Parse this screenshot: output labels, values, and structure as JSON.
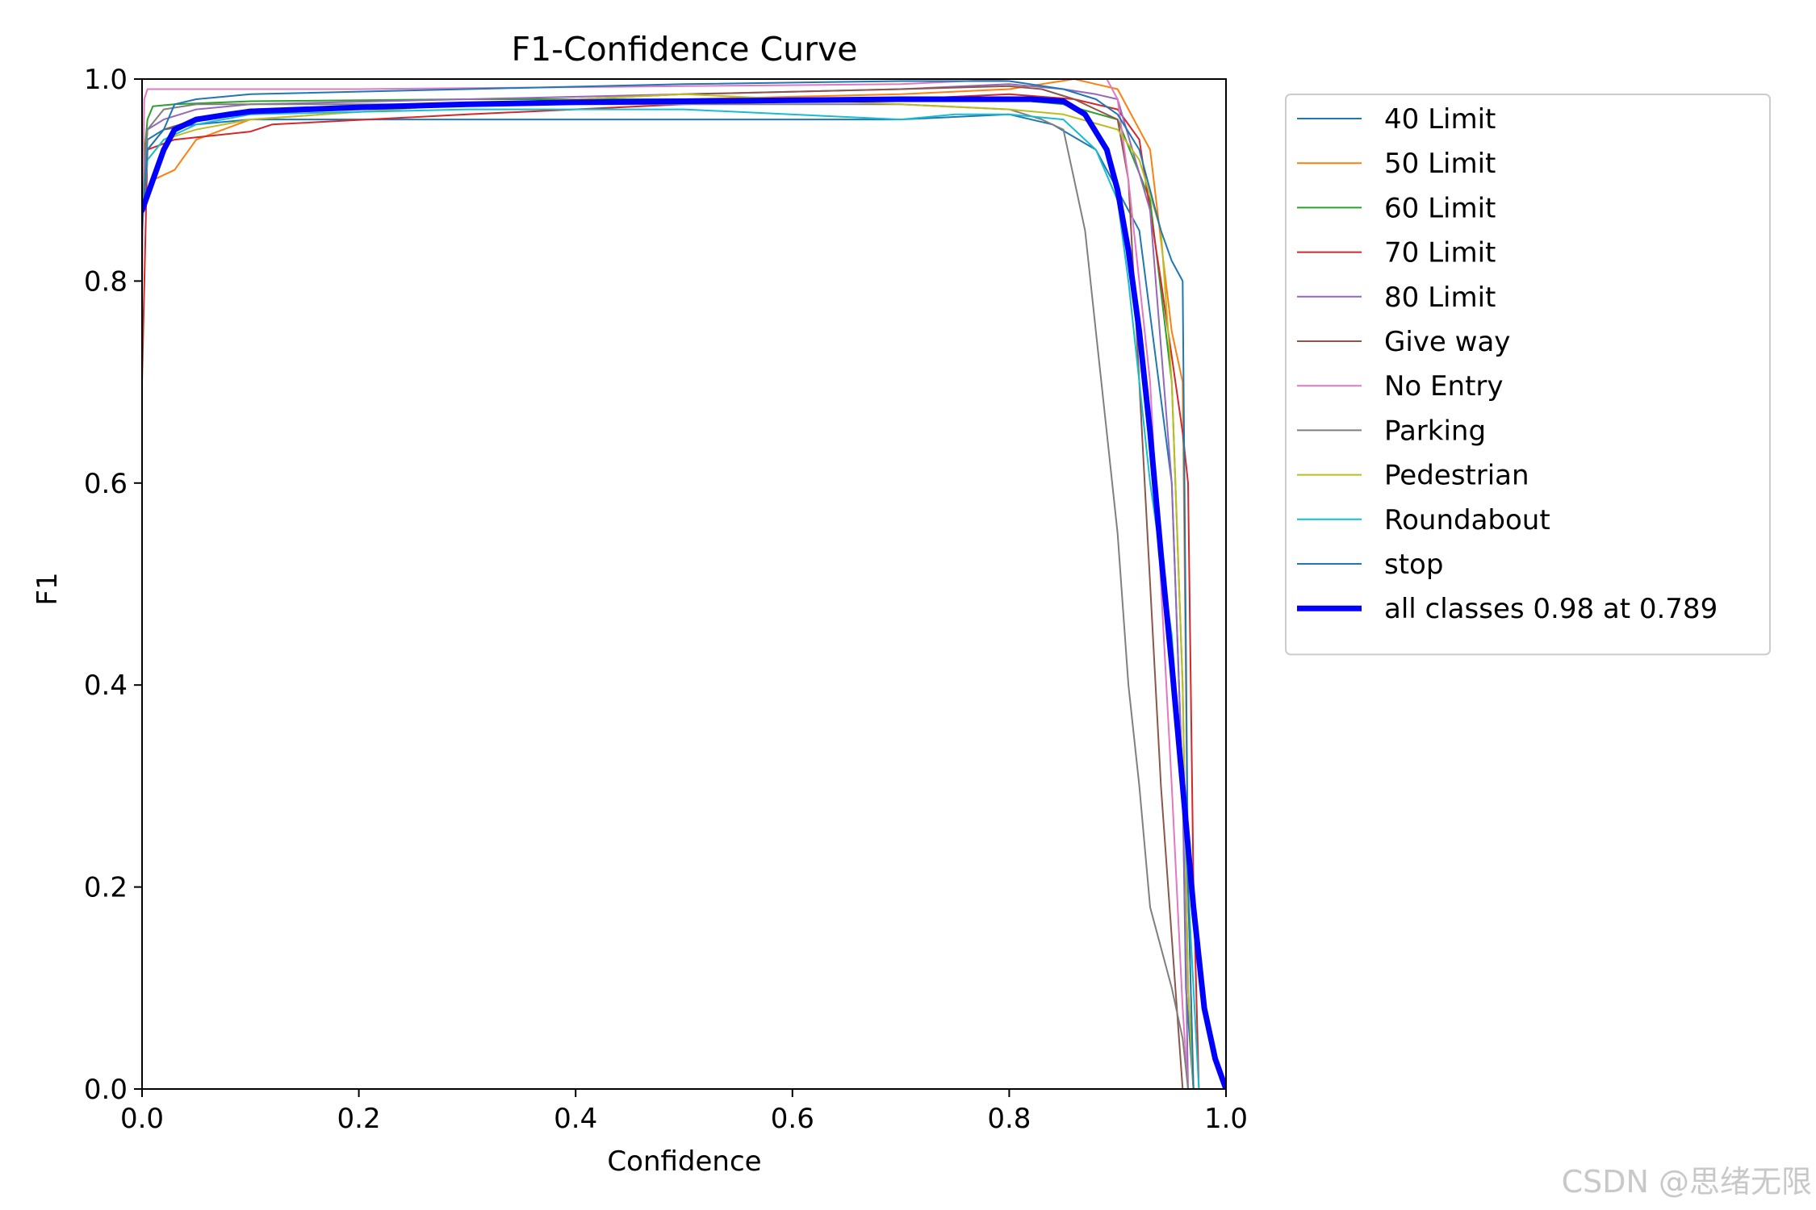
{
  "watermark": "CSDN @思绪无限",
  "chart_data": {
    "type": "line",
    "title": "F1-Confidence Curve",
    "xlabel": "Confidence",
    "ylabel": "F1",
    "xlim": [
      0,
      1
    ],
    "ylim": [
      0,
      1
    ],
    "xticks": [
      "0.0",
      "0.2",
      "0.4",
      "0.6",
      "0.8",
      "1.0"
    ],
    "yticks": [
      "0.0",
      "0.2",
      "0.4",
      "0.6",
      "0.8",
      "1.0"
    ],
    "grid": false,
    "legend_position": "outside-right-top",
    "series": [
      {
        "name": "40 Limit",
        "color": "#1f77b4",
        "linewidth": 2,
        "x": [
          0,
          0.005,
          0.02,
          0.05,
          0.1,
          0.3,
          0.5,
          0.7,
          0.8,
          0.84,
          0.88,
          0.92,
          0.95,
          0.96,
          0.963,
          0.97
        ],
        "y": [
          0.85,
          0.94,
          0.95,
          0.955,
          0.96,
          0.96,
          0.96,
          0.96,
          0.965,
          0.955,
          0.93,
          0.85,
          0.6,
          0.3,
          0.1,
          0
        ]
      },
      {
        "name": "50 Limit",
        "color": "#ff7f0e",
        "linewidth": 2,
        "x": [
          0,
          0.01,
          0.03,
          0.05,
          0.1,
          0.3,
          0.5,
          0.7,
          0.8,
          0.86,
          0.88,
          0.9,
          0.93,
          0.95,
          0.96,
          0.965,
          0.97
        ],
        "y": [
          0.88,
          0.9,
          0.91,
          0.94,
          0.96,
          0.975,
          0.98,
          0.985,
          0.99,
          1.0,
          0.995,
          0.99,
          0.93,
          0.75,
          0.7,
          0.2,
          0
        ]
      },
      {
        "name": "60 Limit",
        "color": "#2ca02c",
        "linewidth": 2,
        "x": [
          0,
          0.005,
          0.01,
          0.03,
          0.1,
          0.3,
          0.5,
          0.7,
          0.8,
          0.85,
          0.9,
          0.93,
          0.95,
          0.96,
          0.965,
          0.97
        ],
        "y": [
          0.9,
          0.96,
          0.973,
          0.975,
          0.978,
          0.98,
          0.98,
          0.98,
          0.98,
          0.975,
          0.96,
          0.88,
          0.7,
          0.4,
          0.1,
          0
        ]
      },
      {
        "name": "70 Limit",
        "color": "#d62728",
        "linewidth": 2,
        "x": [
          0,
          0.005,
          0.03,
          0.1,
          0.12,
          0.3,
          0.5,
          0.7,
          0.8,
          0.86,
          0.9,
          0.92,
          0.94,
          0.96,
          0.965,
          0.97,
          0.975
        ],
        "y": [
          0.7,
          0.93,
          0.94,
          0.948,
          0.955,
          0.965,
          0.975,
          0.98,
          0.985,
          0.98,
          0.97,
          0.94,
          0.8,
          0.65,
          0.6,
          0.2,
          0
        ]
      },
      {
        "name": "80 Limit",
        "color": "#9467bd",
        "linewidth": 2,
        "x": [
          0,
          0.005,
          0.02,
          0.05,
          0.1,
          0.3,
          0.5,
          0.7,
          0.8,
          0.85,
          0.88,
          0.9,
          0.93,
          0.95,
          0.96,
          0.965
        ],
        "y": [
          0.88,
          0.95,
          0.96,
          0.97,
          0.975,
          0.98,
          0.985,
          0.99,
          0.995,
          0.99,
          0.985,
          0.98,
          0.87,
          0.6,
          0.3,
          0
        ]
      },
      {
        "name": "Give way",
        "color": "#8c564b",
        "linewidth": 2,
        "x": [
          0,
          0.005,
          0.02,
          0.05,
          0.1,
          0.3,
          0.5,
          0.7,
          0.8,
          0.83,
          0.86,
          0.88,
          0.9,
          0.91,
          0.93,
          0.94,
          0.95,
          0.96
        ],
        "y": [
          0.86,
          0.93,
          0.95,
          0.96,
          0.97,
          0.975,
          0.985,
          0.99,
          0.993,
          0.99,
          0.98,
          0.97,
          0.96,
          0.9,
          0.5,
          0.3,
          0.15,
          0
        ]
      },
      {
        "name": "No Entry",
        "color": "#e377c2",
        "linewidth": 2,
        "x": [
          0,
          0.002,
          0.005,
          0.2,
          0.5,
          0.7,
          0.8,
          0.88,
          0.89,
          0.9,
          0.91,
          0.93,
          0.95,
          0.96,
          0.965
        ],
        "y": [
          0.8,
          0.98,
          0.99,
          0.99,
          0.993,
          0.995,
          1.0,
          1.0,
          1.0,
          0.98,
          0.9,
          0.7,
          0.3,
          0.08,
          0
        ]
      },
      {
        "name": "Parking",
        "color": "#7f7f7f",
        "linewidth": 2,
        "x": [
          0,
          0.005,
          0.02,
          0.05,
          0.1,
          0.3,
          0.5,
          0.7,
          0.8,
          0.83,
          0.85,
          0.86,
          0.87,
          0.88,
          0.89,
          0.9,
          0.91,
          0.92,
          0.93,
          0.95,
          0.96,
          0.965
        ],
        "y": [
          0.87,
          0.95,
          0.97,
          0.975,
          0.975,
          0.975,
          0.975,
          0.975,
          0.97,
          0.96,
          0.95,
          0.9,
          0.85,
          0.75,
          0.65,
          0.55,
          0.4,
          0.3,
          0.18,
          0.1,
          0.05,
          0
        ]
      },
      {
        "name": "Pedestrian",
        "color": "#bcbd22",
        "linewidth": 2,
        "x": [
          0,
          0.005,
          0.02,
          0.05,
          0.1,
          0.3,
          0.5,
          0.6,
          0.7,
          0.8,
          0.85,
          0.9,
          0.92,
          0.94,
          0.95,
          0.96,
          0.965,
          0.97
        ],
        "y": [
          0.86,
          0.92,
          0.94,
          0.95,
          0.96,
          0.975,
          0.985,
          0.98,
          0.975,
          0.97,
          0.965,
          0.95,
          0.92,
          0.85,
          0.7,
          0.4,
          0.1,
          0
        ]
      },
      {
        "name": "Roundabout",
        "color": "#17becf",
        "linewidth": 2,
        "x": [
          0,
          0.005,
          0.02,
          0.05,
          0.1,
          0.3,
          0.5,
          0.7,
          0.75,
          0.8,
          0.85,
          0.88,
          0.9,
          0.91,
          0.92,
          0.93,
          0.95,
          0.96,
          0.97,
          0.975
        ],
        "y": [
          0.86,
          0.92,
          0.94,
          0.955,
          0.965,
          0.97,
          0.97,
          0.96,
          0.965,
          0.965,
          0.96,
          0.93,
          0.88,
          0.8,
          0.7,
          0.6,
          0.45,
          0.3,
          0.1,
          0
        ]
      },
      {
        "name": "stop",
        "color": "#1f77b4",
        "linewidth": 2,
        "x": [
          0,
          0.005,
          0.02,
          0.03,
          0.05,
          0.1,
          0.3,
          0.5,
          0.7,
          0.8,
          0.85,
          0.88,
          0.9,
          0.92,
          0.94,
          0.95,
          0.96,
          0.965,
          0.97
        ],
        "y": [
          0.85,
          0.93,
          0.95,
          0.975,
          0.98,
          0.985,
          0.99,
          0.995,
          0.998,
          0.998,
          0.99,
          0.98,
          0.965,
          0.93,
          0.85,
          0.82,
          0.8,
          0.2,
          0
        ]
      },
      {
        "name": "all classes 0.98 at 0.789",
        "color": "#0000ff",
        "linewidth": 7,
        "x": [
          0,
          0.01,
          0.02,
          0.03,
          0.05,
          0.08,
          0.1,
          0.2,
          0.3,
          0.4,
          0.5,
          0.6,
          0.7,
          0.789,
          0.82,
          0.85,
          0.87,
          0.89,
          0.9,
          0.91,
          0.92,
          0.93,
          0.94,
          0.95,
          0.96,
          0.97,
          0.98,
          0.99,
          1.0
        ],
        "y": [
          0.87,
          0.9,
          0.93,
          0.95,
          0.96,
          0.965,
          0.968,
          0.972,
          0.975,
          0.977,
          0.978,
          0.979,
          0.98,
          0.98,
          0.98,
          0.978,
          0.965,
          0.93,
          0.89,
          0.83,
          0.75,
          0.65,
          0.53,
          0.42,
          0.3,
          0.18,
          0.08,
          0.03,
          0
        ]
      }
    ]
  }
}
